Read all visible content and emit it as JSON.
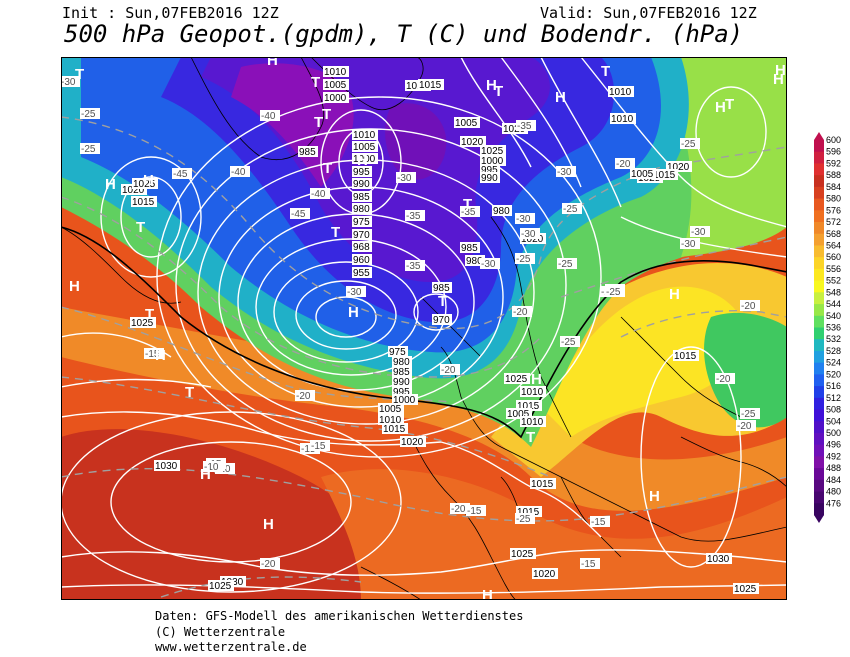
{
  "header": {
    "init": "Init : Sun,07FEB2016 12Z",
    "valid": "Valid: Sun,07FEB2016 12Z",
    "title": "500 hPa Geopot.(gpdm), T (C) und Bodendr. (hPa)"
  },
  "footer": {
    "line1": "Daten: GFS-Modell des amerikanischen Wetterdienstes",
    "line2": "(C) Wetterzentrale",
    "line3": "www.wetterzentrale.de"
  },
  "colorbar": {
    "levels": [
      "600",
      "596",
      "592",
      "588",
      "584",
      "580",
      "576",
      "572",
      "568",
      "564",
      "560",
      "556",
      "552",
      "548",
      "544",
      "540",
      "536",
      "532",
      "528",
      "524",
      "520",
      "516",
      "512",
      "508",
      "504",
      "500",
      "496",
      "492",
      "488",
      "484",
      "480",
      "476"
    ],
    "colors": [
      "#c0104e",
      "#d02040",
      "#e03030",
      "#c83020",
      "#d84020",
      "#e85820",
      "#f07020",
      "#f08828",
      "#f4a030",
      "#f8bc30",
      "#fcd428",
      "#fce820",
      "#f8f820",
      "#c8f040",
      "#98e848",
      "#60e060",
      "#30d070",
      "#20b8c0",
      "#20a0e0",
      "#2080f0",
      "#2060f0",
      "#2040e8",
      "#3020e0",
      "#4010d8",
      "#5010c8",
      "#6010c0",
      "#7010b8",
      "#8010a8",
      "#6a0898",
      "#580880",
      "#480670",
      "#380460"
    ]
  },
  "map": {
    "pressure_labels": [
      {
        "t": "1010",
        "x": 1010,
        "y": 0
      },
      {
        "t": "1005",
        "x": 1005,
        "y": 0
      },
      {
        "t": "1000",
        "x": 1000,
        "y": 0
      },
      {
        "t": "1015",
        "x": 1015,
        "y": 0
      },
      {
        "t": "985",
        "x": 985,
        "y": 0
      },
      {
        "t": "1010",
        "x": 1010,
        "y": 0
      },
      {
        "t": "1005",
        "x": 1005,
        "y": 0
      },
      {
        "t": "1000",
        "x": 1000,
        "y": 0
      },
      {
        "t": "995",
        "x": 995,
        "y": 0
      },
      {
        "t": "990",
        "x": 990,
        "y": 0
      },
      {
        "t": "985",
        "x": 985,
        "y": 0
      },
      {
        "t": "980",
        "x": 980,
        "y": 0
      },
      {
        "t": "975",
        "x": 975,
        "y": 0
      },
      {
        "t": "970",
        "x": 970,
        "y": 0
      },
      {
        "t": "968",
        "x": 968,
        "y": 0
      },
      {
        "t": "960",
        "x": 960,
        "y": 0
      },
      {
        "t": "955",
        "x": 955,
        "y": 0
      },
      {
        "t": "985",
        "x": 985,
        "y": 0
      },
      {
        "t": "970",
        "x": 970,
        "y": 0
      },
      {
        "t": "975",
        "x": 975,
        "y": 0
      },
      {
        "t": "980",
        "x": 980,
        "y": 0
      },
      {
        "t": "985",
        "x": 985,
        "y": 0
      },
      {
        "t": "990",
        "x": 990,
        "y": 0
      },
      {
        "t": "995",
        "x": 995,
        "y": 0
      },
      {
        "t": "1000",
        "x": 1000,
        "y": 0
      },
      {
        "t": "1005",
        "x": 1005,
        "y": 0
      },
      {
        "t": "1010",
        "x": 1010,
        "y": 0
      },
      {
        "t": "1015",
        "x": 1015,
        "y": 0
      },
      {
        "t": "1020",
        "x": 1020,
        "y": 0
      },
      {
        "t": "1025",
        "x": 1025,
        "y": 0
      },
      {
        "t": "1030",
        "x": 1030,
        "y": 0
      },
      {
        "t": "1015",
        "x": 1015,
        "y": 0
      },
      {
        "t": "1020",
        "x": 1020,
        "y": 0
      },
      {
        "t": "1025",
        "x": 1025,
        "y": 0
      },
      {
        "t": "1030",
        "x": 1030,
        "y": 0
      },
      {
        "t": "1025",
        "x": 1025,
        "y": 0
      },
      {
        "t": "1010",
        "x": 1010,
        "y": 0
      },
      {
        "t": "1015",
        "x": 1015,
        "y": 0
      },
      {
        "t": "1020",
        "x": 1020,
        "y": 0
      },
      {
        "t": "1025",
        "x": 1025,
        "y": 0
      },
      {
        "t": "1010",
        "x": 1010,
        "y": 0
      },
      {
        "t": "1005",
        "x": 1005,
        "y": 0
      },
      {
        "t": "1010",
        "x": 1010,
        "y": 0
      },
      {
        "t": "1015",
        "x": 1015,
        "y": 0
      },
      {
        "t": "1020",
        "x": 1020,
        "y": 0
      },
      {
        "t": "1025",
        "x": 1025,
        "y": 0
      },
      {
        "t": "1015",
        "x": 1015,
        "y": 0
      },
      {
        "t": "1030",
        "x": 1030,
        "y": 0
      },
      {
        "t": "1025",
        "x": 1025,
        "y": 0
      },
      {
        "t": "1015",
        "x": 1015,
        "y": 0
      },
      {
        "t": "1020",
        "x": 1020,
        "y": 0
      },
      {
        "t": "1025",
        "x": 1025,
        "y": 0
      },
      {
        "t": "1000",
        "x": 1000,
        "y": 0
      },
      {
        "t": "995",
        "x": 995,
        "y": 0
      },
      {
        "t": "990",
        "x": 990,
        "y": 0
      },
      {
        "t": "985",
        "x": 985,
        "y": 0
      },
      {
        "t": "980",
        "x": 980,
        "y": 0
      },
      {
        "t": "980",
        "x": 980,
        "y": 0
      },
      {
        "t": "1020",
        "x": 1020,
        "y": 0
      },
      {
        "t": "1025",
        "x": 1025,
        "y": 0
      },
      {
        "t": "1005",
        "x": 1005,
        "y": 0
      },
      {
        "t": "1010",
        "x": 1010,
        "y": 0
      },
      {
        "t": "1015",
        "x": 1015,
        "y": 0
      },
      {
        "t": "1005",
        "x": 1005,
        "y": 0
      },
      {
        "t": "1020",
        "x": 1020,
        "y": 0
      },
      {
        "t": "1015",
        "x": 1015,
        "y": 0
      }
    ],
    "temp_labels": [
      "-30",
      "-25",
      "-25",
      "-45",
      "-40",
      "-45",
      "-40",
      "-35",
      "-30",
      "-30",
      "-35",
      "-30",
      "-25",
      "-20",
      "-35",
      "-25",
      "-20",
      "-25",
      "-30",
      "-30",
      "-35",
      "-25",
      "-30",
      "-30",
      "-25",
      "-30",
      "-25",
      "-20",
      "-15",
      "-20",
      "-25",
      "-20",
      "-15",
      "-20",
      "-25",
      "-20",
      "-15",
      "-10",
      "-15",
      "-20",
      "-15",
      "-15",
      "-20",
      "-15",
      "-15",
      "-10",
      "-40",
      "-25"
    ],
    "centers": [
      "T",
      "T",
      "H",
      "H",
      "T",
      "H",
      "H",
      "T",
      "T",
      "T",
      "H",
      "T",
      "H",
      "T",
      "T",
      "H",
      "H",
      "T",
      "T",
      "H",
      "T",
      "H",
      "T",
      "H",
      "H",
      "H",
      "H",
      "H",
      "H",
      "T",
      "H",
      "T",
      "H"
    ]
  }
}
